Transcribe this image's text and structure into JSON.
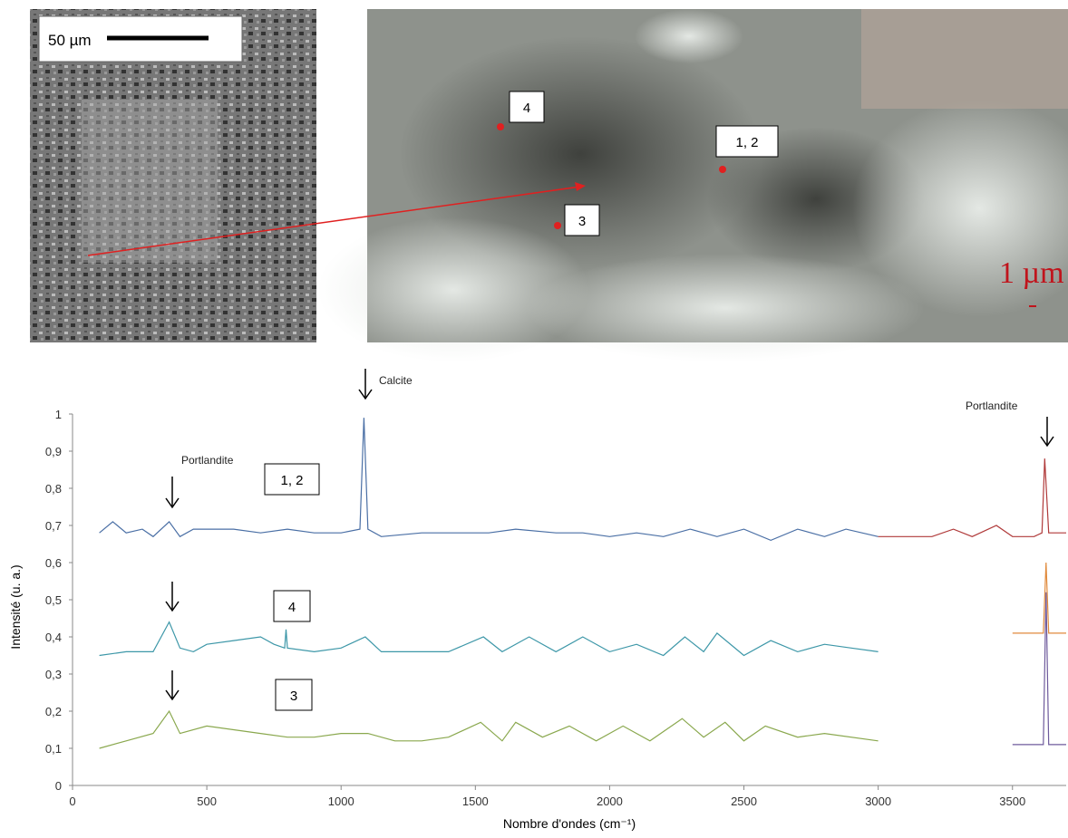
{
  "micrographs": {
    "scale_bar_left": "50 µm",
    "points": [
      "4",
      "1, 2",
      "3"
    ],
    "scale_bar_right": "1 µm"
  },
  "chart_data": {
    "type": "line",
    "x_label": "Nombre d'ondes (cm⁻¹)",
    "y_label": "Intensité (u. a.)",
    "annotations": [
      "Calcite",
      "Portlandite",
      "Portlandite",
      "1, 2",
      "4",
      "3"
    ],
    "xlim": [
      0,
      3700
    ],
    "xticks": [
      0,
      500,
      1000,
      1500,
      2000,
      2500,
      3000,
      3500
    ],
    "ylim": [
      0,
      1
    ],
    "yticks": [
      0,
      {
        "value": 0.1,
        "label": "0,1"
      },
      {
        "value": 0.2,
        "label": "0,2"
      },
      {
        "value": 0.3,
        "label": "0,3"
      },
      {
        "value": 0.4,
        "label": "0,4"
      },
      {
        "value": 0.5,
        "label": "0,5"
      },
      {
        "value": 0.6,
        "label": "0,6"
      },
      {
        "value": 0.7,
        "label": "0,7"
      },
      {
        "value": 0.8,
        "label": "0,8"
      },
      {
        "value": 0.9,
        "label": "0,9"
      },
      1
    ],
    "grid": false,
    "series": [
      {
        "color": "#4a6fa5",
        "x": [
          100,
          150,
          200,
          260,
          300,
          360,
          400,
          450,
          500,
          600,
          700,
          800,
          900,
          1000,
          1070,
          1085,
          1100,
          1150,
          1300,
          1400,
          1550,
          1650,
          1800,
          1900,
          2000,
          2100,
          2200,
          2300,
          2400,
          2500,
          2600,
          2700,
          2800,
          2880,
          3000
        ],
        "values": [
          0.68,
          0.71,
          0.68,
          0.69,
          0.67,
          0.71,
          0.67,
          0.69,
          0.69,
          0.69,
          0.68,
          0.69,
          0.68,
          0.68,
          0.69,
          0.99,
          0.69,
          0.67,
          0.68,
          0.68,
          0.68,
          0.69,
          0.68,
          0.68,
          0.67,
          0.68,
          0.67,
          0.69,
          0.67,
          0.69,
          0.66,
          0.69,
          0.67,
          0.69,
          0.67
        ]
      },
      {
        "color": "#b03a3a",
        "x": [
          3000,
          3100,
          3200,
          3280,
          3350,
          3440,
          3500,
          3580,
          3610,
          3620,
          3635,
          3700
        ],
        "values": [
          0.67,
          0.67,
          0.67,
          0.69,
          0.67,
          0.7,
          0.67,
          0.67,
          0.68,
          0.88,
          0.68,
          0.68
        ]
      },
      {
        "color": "#3d97a8",
        "x": [
          100,
          200,
          300,
          360,
          400,
          450,
          500,
          600,
          700,
          750,
          790,
          795,
          800,
          900,
          1000,
          1090,
          1150,
          1300,
          1400,
          1530,
          1600,
          1700,
          1800,
          1900,
          2000,
          2100,
          2200,
          2280,
          2350,
          2400,
          2500,
          2600,
          2700,
          2800,
          2900,
          3000
        ],
        "values": [
          0.35,
          0.36,
          0.36,
          0.44,
          0.37,
          0.36,
          0.38,
          0.39,
          0.4,
          0.38,
          0.37,
          0.42,
          0.37,
          0.36,
          0.37,
          0.4,
          0.36,
          0.36,
          0.36,
          0.4,
          0.36,
          0.4,
          0.36,
          0.4,
          0.36,
          0.38,
          0.35,
          0.4,
          0.36,
          0.41,
          0.35,
          0.39,
          0.36,
          0.38,
          0.37,
          0.36
        ]
      },
      {
        "color": "#e08a3c",
        "x": [
          3500,
          3600,
          3615,
          3625,
          3635,
          3700
        ],
        "values": [
          0.41,
          0.41,
          0.41,
          0.6,
          0.41,
          0.41
        ]
      },
      {
        "color": "#8aa84e",
        "x": [
          100,
          200,
          300,
          360,
          400,
          500,
          600,
          700,
          800,
          900,
          1000,
          1100,
          1200,
          1300,
          1400,
          1520,
          1600,
          1650,
          1750,
          1850,
          1950,
          2050,
          2150,
          2270,
          2350,
          2430,
          2500,
          2580,
          2700,
          2800,
          3000
        ],
        "values": [
          0.1,
          0.12,
          0.14,
          0.2,
          0.14,
          0.16,
          0.15,
          0.14,
          0.13,
          0.13,
          0.14,
          0.14,
          0.12,
          0.12,
          0.13,
          0.17,
          0.12,
          0.17,
          0.13,
          0.16,
          0.12,
          0.16,
          0.12,
          0.18,
          0.13,
          0.17,
          0.12,
          0.16,
          0.13,
          0.14,
          0.12
        ]
      },
      {
        "color": "#6e5a9c",
        "x": [
          3500,
          3600,
          3615,
          3625,
          3635,
          3700
        ],
        "values": [
          0.11,
          0.11,
          0.11,
          0.52,
          0.11,
          0.11
        ]
      }
    ]
  }
}
